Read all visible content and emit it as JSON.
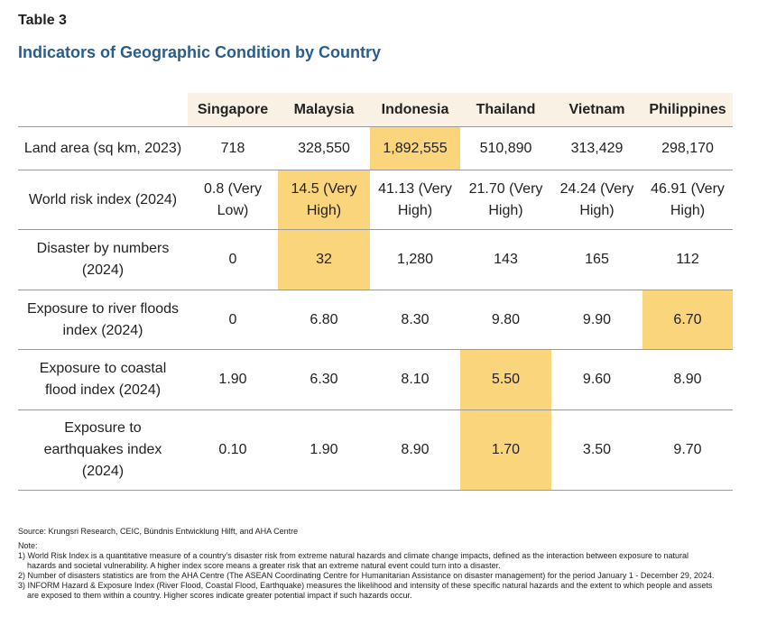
{
  "header": {
    "label": "Table 3",
    "title": "Indicators of Geographic Condition by Country"
  },
  "table": {
    "columns": [
      "Singapore",
      "Malaysia",
      "Indonesia",
      "Thailand",
      "Vietnam",
      "Philippines"
    ],
    "highlight_color": "#fbd57c",
    "header_color": "#f8f1e4",
    "rows": [
      {
        "label": "Land area (sq km, 2023)",
        "cells": [
          "718",
          "328,550",
          "1,892,555",
          "510,890",
          "313,429",
          "298,170"
        ],
        "highlight": 2
      },
      {
        "label": "World risk index (2024)",
        "cells": [
          "0.8 (Very Low)",
          "14.5 (Very High)",
          "41.13 (Very High)",
          "21.70 (Very High)",
          "24.24 (Very High)",
          "46.91 (Very High)"
        ],
        "highlight": 1
      },
      {
        "label": "Disaster by numbers (2024)",
        "cells": [
          "0",
          "32",
          "1,280",
          "143",
          "165",
          "112"
        ],
        "highlight": 1
      },
      {
        "label": "Exposure to river floods index (2024)",
        "cells": [
          "0",
          "6.80",
          "8.30",
          "9.80",
          "9.90",
          "6.70"
        ],
        "highlight": 5
      },
      {
        "label": "Exposure to coastal flood index (2024)",
        "cells": [
          "1.90",
          "6.30",
          "8.10",
          "5.50",
          "9.60",
          "8.90"
        ],
        "highlight": 3
      },
      {
        "label": "Exposure to earthquakes index (2024)",
        "cells": [
          "0.10",
          "1.90",
          "8.90",
          "1.70",
          "3.50",
          "9.70"
        ],
        "highlight": 3
      }
    ]
  },
  "footer": {
    "source": "Source: Krungsri Research, CEIC, Bündnis Entwicklung Hilft, and AHA Centre",
    "note_label": "Note:",
    "notes": [
      "1) World Risk Index is a quantitative measure of a country’s disaster risk from extreme natural hazards and climate change impacts, defined as the interaction between exposure to natural hazards and societal vulnerability. A higher index score means a greater risk that an extreme natural event could turn into a disaster.",
      "2) Number of disasters statistics are from the AHA Centre (The ASEAN Coordinating Centre for Humanitarian Assistance on disaster management) for the period January 1 - December 29, 2024.",
      "3) INFORM Hazard & Exposure Index (River Flood, Coastal Flood, Earthquake) measures the likelihood and intensity of these specific natural hazards and the extent to which people and assets are exposed to them within a country. Higher scores indicate greater potential impact if such hazards occur."
    ]
  }
}
